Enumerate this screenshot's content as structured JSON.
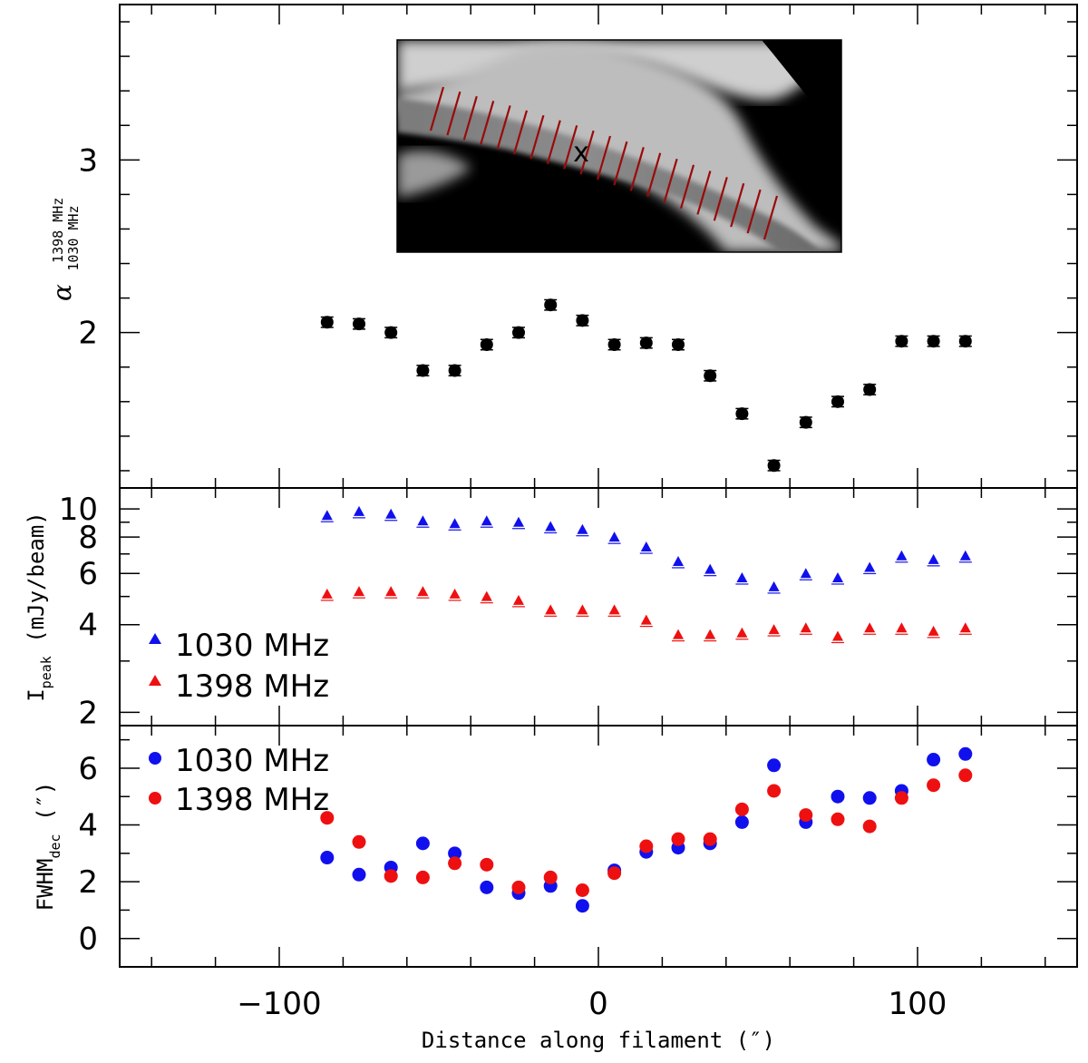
{
  "chart_data": [
    {
      "type": "scatter",
      "name": "spectral-index",
      "ylabel": "α",
      "ylabel_sup": "1398 MHz",
      "ylabel_sub": "1030 MHz",
      "ylim": [
        1.1,
        3.9
      ],
      "yticks": [
        2,
        3
      ],
      "series": [
        {
          "name": "alpha",
          "color": "#000000",
          "x": [
            -85,
            -75,
            -65,
            -55,
            -45,
            -35,
            -25,
            -15,
            -5,
            5,
            15,
            25,
            35,
            45,
            55,
            65,
            75,
            85,
            95,
            105,
            115
          ],
          "y": [
            2.06,
            2.05,
            2.0,
            1.78,
            1.78,
            1.93,
            2.0,
            2.16,
            2.07,
            1.93,
            1.94,
            1.93,
            1.75,
            1.53,
            1.23,
            1.48,
            1.6,
            1.67,
            1.95,
            1.95,
            1.95
          ],
          "err": [
            0.03,
            0.03,
            0.03,
            0.03,
            0.03,
            0.03,
            0.03,
            0.03,
            0.03,
            0.03,
            0.03,
            0.03,
            0.03,
            0.03,
            0.03,
            0.03,
            0.03,
            0.03,
            0.03,
            0.03,
            0.03
          ]
        }
      ]
    },
    {
      "type": "scatter",
      "name": "peak-intensity",
      "ylabel": "I",
      "ylabel_sub": "peak",
      "ylabel_rest": " (mJy/beam)",
      "yscale": "log",
      "ylim": [
        1.8,
        11.8
      ],
      "yticks": [
        2,
        4,
        6,
        8,
        10
      ],
      "legend": [
        "1030 MHz",
        "1398 MHz"
      ],
      "series": [
        {
          "name": "1030 MHz",
          "color": "#1010ee",
          "x": [
            -85,
            -75,
            -65,
            -55,
            -45,
            -35,
            -25,
            -15,
            -5,
            5,
            15,
            25,
            35,
            45,
            55,
            65,
            75,
            85,
            95,
            105,
            115
          ],
          "y": [
            9.5,
            9.8,
            9.6,
            9.1,
            8.9,
            9.1,
            9.0,
            8.7,
            8.5,
            8.0,
            7.4,
            6.6,
            6.2,
            5.8,
            5.4,
            6.0,
            5.8,
            6.3,
            6.9,
            6.7,
            6.9
          ]
        },
        {
          "name": "1398 MHz",
          "color": "#ee1010",
          "x": [
            -85,
            -75,
            -65,
            -55,
            -45,
            -35,
            -25,
            -15,
            -5,
            5,
            15,
            25,
            35,
            45,
            55,
            65,
            75,
            85,
            95,
            105,
            115
          ],
          "y": [
            5.1,
            5.2,
            5.2,
            5.2,
            5.1,
            5.0,
            4.85,
            4.5,
            4.5,
            4.5,
            4.15,
            3.7,
            3.7,
            3.75,
            3.85,
            3.9,
            3.65,
            3.9,
            3.9,
            3.8,
            3.9
          ]
        }
      ]
    },
    {
      "type": "scatter",
      "name": "fwhm",
      "ylabel": "FWHM",
      "ylabel_sub": "dec",
      "ylabel_rest": "  (″)",
      "xlabel": "Distance along filament (″)",
      "xlim": [
        -150,
        150
      ],
      "ylim": [
        -1.0,
        7.5
      ],
      "yticks": [
        0,
        2,
        4,
        6
      ],
      "xticks": [
        -100,
        0,
        100
      ],
      "xtick_labels": [
        "−100",
        "0",
        "100"
      ],
      "legend": [
        "1030 MHz",
        "1398 MHz"
      ],
      "series": [
        {
          "name": "1030 MHz",
          "color": "#1010ee",
          "x": [
            -85,
            -75,
            -65,
            -55,
            -45,
            -35,
            -25,
            -15,
            -5,
            5,
            15,
            25,
            35,
            45,
            55,
            65,
            75,
            85,
            95,
            105,
            115
          ],
          "y": [
            2.85,
            2.25,
            2.5,
            3.35,
            3.0,
            1.8,
            1.6,
            1.85,
            1.15,
            2.4,
            3.05,
            3.2,
            3.35,
            4.1,
            6.1,
            4.1,
            5.0,
            4.95,
            5.2,
            6.3,
            6.5
          ]
        },
        {
          "name": "1398 MHz",
          "color": "#ee1010",
          "x": [
            -85,
            -75,
            -65,
            -55,
            -45,
            -35,
            -25,
            -15,
            -5,
            5,
            15,
            25,
            35,
            45,
            55,
            65,
            75,
            85,
            95,
            105,
            115
          ],
          "y": [
            4.25,
            3.4,
            2.2,
            2.15,
            2.65,
            2.6,
            1.8,
            2.15,
            1.7,
            2.3,
            3.25,
            3.5,
            3.5,
            4.55,
            5.2,
            4.35,
            4.2,
            3.95,
            4.95,
            5.4,
            5.75
          ]
        }
      ]
    }
  ],
  "inset": {
    "marker_label": "x"
  }
}
